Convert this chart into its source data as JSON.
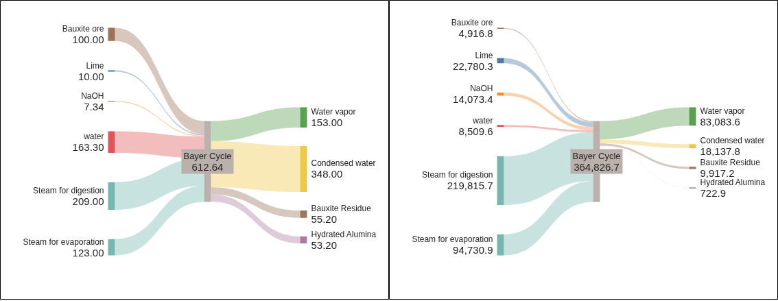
{
  "chart_data": [
    {
      "type": "other",
      "categories": [
        "Bauxite ore",
        "Lime",
        "NaOH",
        "water",
        "Steam for digestion",
        "Steam for evaporation",
        "Bayer Cycle",
        "Water vapor",
        "Condensed water",
        "Bauxite Residue",
        "Hydrated Alumina"
      ],
      "values": [
        100.0,
        10.0,
        7.34,
        163.3,
        209.0,
        123.0,
        612.64,
        153.0,
        348.0,
        55.2,
        53.2
      ],
      "value_labels": [
        "100.00",
        "10.00",
        "7.34",
        "163.30",
        "209.00",
        "123.00",
        "612.64",
        "153.00",
        "348.00",
        "55.20",
        "53.20"
      ],
      "colors": [
        "#9c7259",
        "#4e79a7",
        "#f28e2b",
        "#e15759",
        "#76b7b2",
        "#76b7b2",
        "#bab0ac",
        "#59a14f",
        "#edc948",
        "#9c755f",
        "#b07aa1"
      ]
    },
    {
      "type": "other",
      "categories": [
        "Bauxite ore",
        "Lime",
        "NaOH",
        "water",
        "Steam for digestion",
        "Steam for evaporation",
        "Bayer Cycle",
        "Water vapor",
        "Condensed water",
        "Bauxite Residue",
        "Hydrated Alumina"
      ],
      "values": [
        4916.8,
        22780.3,
        14073.4,
        8509.6,
        219815.7,
        94730.9,
        364826.7,
        83083.6,
        18137.8,
        9917.2,
        722.9
      ],
      "value_labels": [
        "4,916.8",
        "22,780.3",
        "14,073.4",
        "8,509.6",
        "219,815.7",
        "94,730.9",
        "364,826.7",
        "83,083.6",
        "18,137.8",
        "9,917.2",
        "722.9"
      ],
      "colors": [
        "#9c7259",
        "#4e79a7",
        "#f28e2b",
        "#e15759",
        "#76b7b2",
        "#76b7b2",
        "#bab0ac",
        "#59a14f",
        "#edc948",
        "#9c755f",
        "#b07aa1"
      ]
    }
  ]
}
